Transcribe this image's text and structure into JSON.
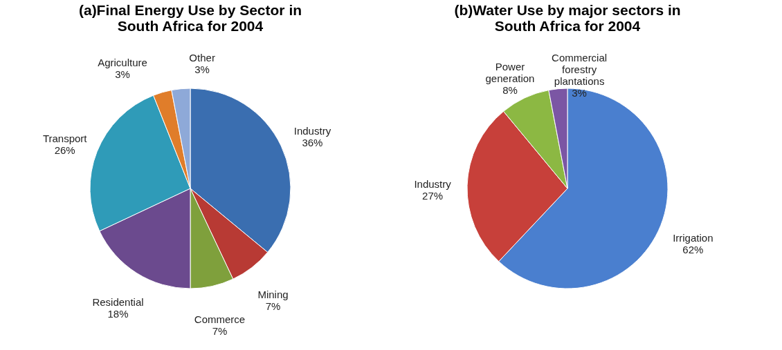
{
  "chart_data": [
    {
      "type": "pie",
      "title": "(a)Final Energy Use by Sector in South Africa for 2004",
      "categories": [
        "Industry",
        "Mining",
        "Commerce",
        "Residential",
        "Transport",
        "Agriculture",
        "Other"
      ],
      "values": [
        36,
        7,
        7,
        18,
        26,
        3,
        3
      ],
      "colors": [
        "#3a6eb0",
        "#b83a34",
        "#7fa03c",
        "#6b4a8e",
        "#2f9bb8",
        "#e07d2a",
        "#8ea9d8"
      ],
      "value_labels": [
        "36%",
        "7%",
        "7%",
        "18%",
        "26%",
        "3%",
        "3%"
      ]
    },
    {
      "type": "pie",
      "title": "(b)Water Use by major sectors in South Africa for 2004",
      "categories": [
        "Irrigation",
        "Industry",
        "Power generation",
        "Commercial forestry plantations"
      ],
      "values": [
        62,
        27,
        8,
        3
      ],
      "colors": [
        "#4a7fcf",
        "#c7403a",
        "#8cb843",
        "#7b56a4"
      ],
      "value_labels": [
        "62%",
        "27%",
        "8%",
        "3%"
      ]
    }
  ]
}
